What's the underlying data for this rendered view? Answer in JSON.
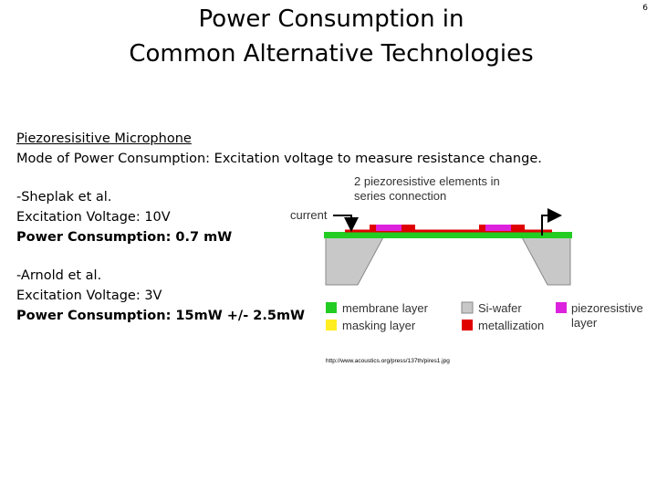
{
  "page_number": "6",
  "title": {
    "lines": [
      "Power Consumption in",
      "Common Alternative Technologies"
    ]
  },
  "heading": "Piezoresisitive Microphone",
  "mode": "Mode of Power Consumption:  Excitation voltage to measure resistance change.",
  "studies": [
    {
      "author": "-Sheplak et al.",
      "voltage": "Excitation Voltage: 10V",
      "power": "Power Consumption: 0.7 mW"
    },
    {
      "author": "-Arnold et al.",
      "voltage": "Excitation Voltage: 3V",
      "power": "Power Consumption: 15mW +/- 2.5mW"
    }
  ],
  "diagram": {
    "caption": [
      "2 piezoresistive elements in",
      "series connection"
    ],
    "current": "current",
    "legend": {
      "membrane": "membrane layer",
      "wafer": "Si-wafer",
      "piezo": [
        "piezoresistive",
        "layer"
      ],
      "masking": "masking layer",
      "metal": "metallization"
    },
    "source": "http://www.acoustics.org/press/137th/pires1.jpg"
  }
}
